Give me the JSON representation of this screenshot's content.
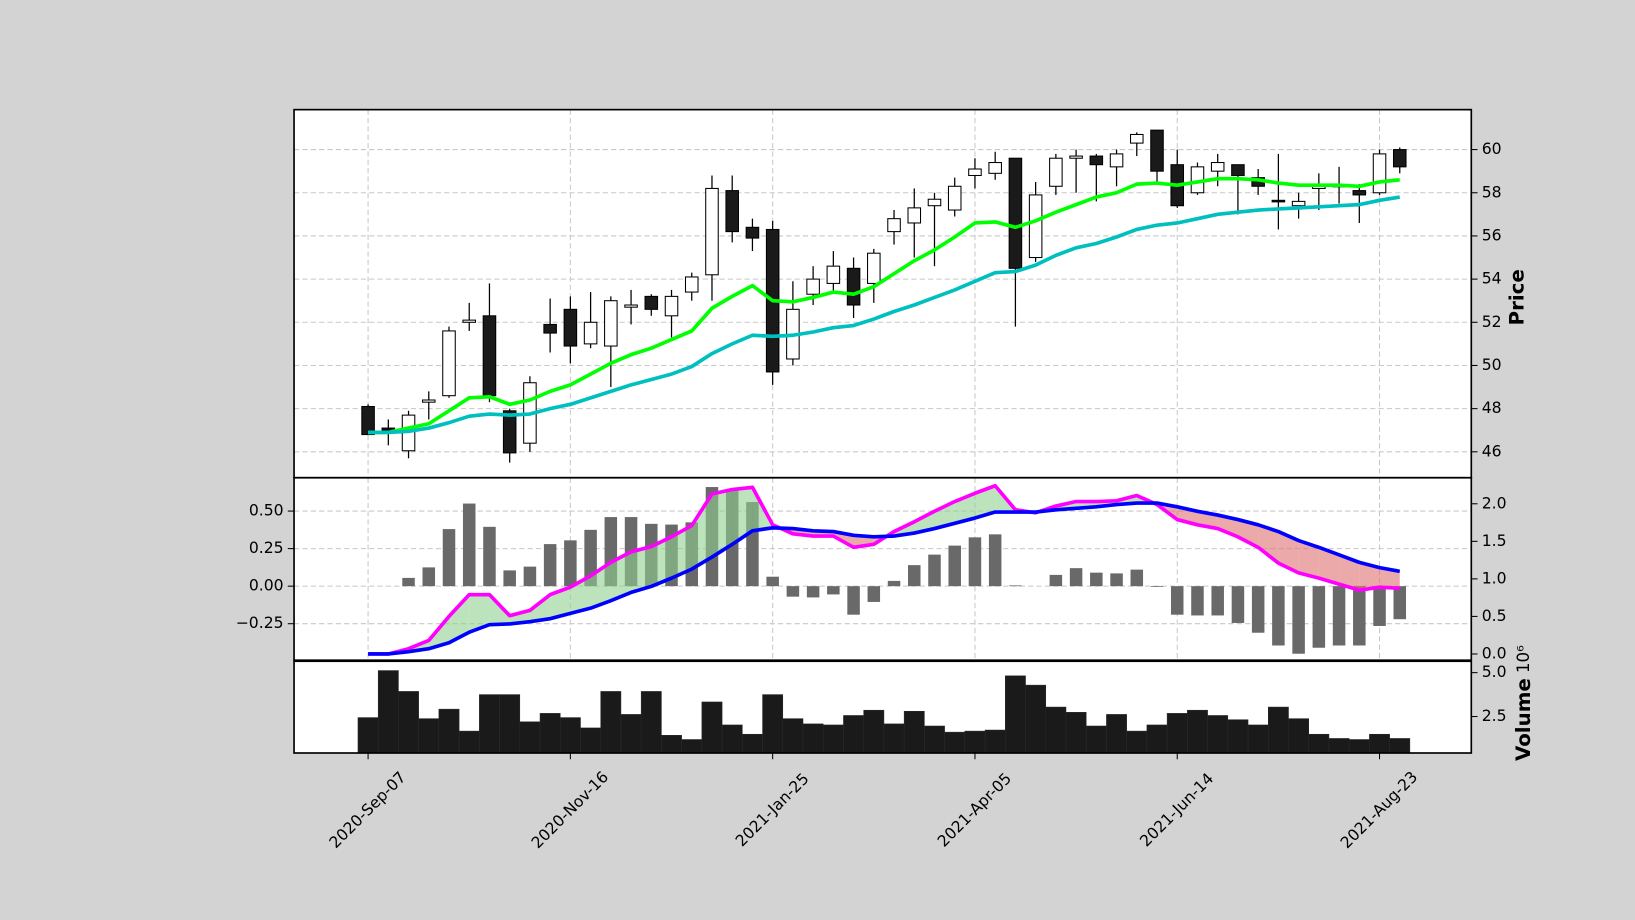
{
  "chart_data": [
    {
      "type": "candlestick",
      "categories": [
        "2020-Sep-07",
        null,
        null,
        null,
        null,
        null,
        null,
        null,
        null,
        null,
        "2020-Nov-16",
        null,
        null,
        null,
        null,
        null,
        null,
        null,
        null,
        null,
        "2021-Jan-25",
        null,
        null,
        null,
        null,
        null,
        null,
        null,
        null,
        null,
        "2021-Apr-05",
        null,
        null,
        null,
        null,
        null,
        null,
        null,
        null,
        null,
        "2021-Jun-14",
        null,
        null,
        null,
        null,
        null,
        null,
        null,
        null,
        null,
        "2021-Aug-23",
        null
      ],
      "open": [
        48.1,
        47.1,
        46.05,
        48.3,
        48.6,
        52.0,
        52.3,
        47.9,
        46.4,
        51.9,
        52.6,
        51.0,
        50.9,
        52.7,
        53.2,
        52.3,
        53.4,
        54.2,
        58.1,
        56.4,
        56.3,
        50.3,
        53.3,
        53.8,
        54.5,
        53.8,
        56.2,
        56.6,
        57.4,
        57.2,
        58.8,
        58.9,
        59.6,
        55.0,
        58.3,
        59.6,
        59.7,
        59.2,
        60.3,
        60.9,
        59.3,
        58.0,
        59.0,
        59.3,
        58.7,
        57.65,
        57.4,
        58.2,
        58.3,
        58.1,
        58.0,
        60.0
      ],
      "high": [
        48.2,
        47.5,
        47.9,
        48.8,
        51.8,
        52.9,
        53.8,
        48.0,
        49.5,
        53.1,
        53.2,
        53.4,
        53.2,
        53.5,
        53.3,
        53.5,
        54.3,
        58.8,
        58.8,
        56.8,
        56.7,
        53.9,
        54.6,
        55.3,
        55.0,
        55.4,
        57.2,
        58.2,
        58.0,
        58.7,
        59.6,
        59.9,
        59.6,
        58.5,
        59.8,
        60.0,
        59.8,
        60.0,
        60.8,
        60.9,
        60.0,
        59.4,
        59.8,
        59.3,
        59.1,
        59.8,
        58.0,
        58.9,
        59.2,
        58.4,
        60.0,
        60.1
      ],
      "low": [
        46.8,
        46.3,
        45.7,
        47.5,
        48.5,
        51.6,
        48.3,
        45.5,
        46.0,
        50.6,
        50.1,
        50.8,
        49.0,
        51.9,
        52.3,
        51.3,
        53.0,
        53.0,
        55.7,
        55.3,
        49.1,
        50.0,
        52.8,
        53.4,
        52.2,
        52.9,
        55.6,
        55.0,
        54.6,
        56.9,
        58.2,
        58.6,
        51.8,
        54.8,
        57.9,
        58.0,
        57.6,
        58.3,
        59.7,
        58.4,
        57.3,
        57.9,
        58.3,
        57.0,
        57.9,
        56.3,
        56.8,
        57.2,
        57.5,
        56.6,
        57.9,
        58.9
      ],
      "close": [
        46.8,
        47.0,
        47.7,
        48.4,
        51.6,
        52.1,
        48.6,
        45.95,
        49.2,
        51.5,
        50.9,
        52.0,
        53.0,
        52.8,
        52.6,
        53.2,
        54.1,
        58.2,
        56.2,
        55.9,
        49.7,
        52.6,
        54.0,
        54.6,
        52.8,
        55.2,
        56.8,
        57.3,
        57.7,
        58.3,
        59.1,
        59.4,
        54.5,
        57.9,
        59.6,
        59.7,
        59.3,
        59.8,
        60.7,
        59.0,
        57.4,
        59.2,
        59.4,
        58.8,
        58.3,
        57.6,
        57.6,
        58.4,
        58.35,
        57.9,
        59.8,
        59.2
      ],
      "up_color": "#ffffff",
      "down_color": "#1a1a1a",
      "series": [
        {
          "color": "#00ff00",
          "values": [
            46.9,
            46.9,
            47.1,
            47.3,
            47.9,
            48.5,
            48.55,
            48.2,
            48.4,
            48.8,
            49.1,
            49.6,
            50.1,
            50.5,
            50.8,
            51.2,
            51.6,
            52.65,
            53.2,
            53.7,
            53.0,
            52.95,
            53.15,
            53.4,
            53.3,
            53.65,
            54.25,
            54.85,
            55.35,
            55.95,
            56.6,
            56.65,
            56.4,
            56.7,
            57.1,
            57.45,
            57.8,
            58.0,
            58.4,
            58.45,
            58.35,
            58.5,
            58.65,
            58.65,
            58.6,
            58.45,
            58.35,
            58.35,
            58.35,
            58.3,
            58.5,
            58.6
          ]
        },
        {
          "color": "#00bfbf",
          "values": [
            46.9,
            46.9,
            46.95,
            47.1,
            47.35,
            47.65,
            47.75,
            47.7,
            47.75,
            48.0,
            48.2,
            48.5,
            48.8,
            49.1,
            49.35,
            49.6,
            49.95,
            50.55,
            51.0,
            51.4,
            51.35,
            51.4,
            51.55,
            51.75,
            51.85,
            52.15,
            52.5,
            52.8,
            53.15,
            53.5,
            53.9,
            54.3,
            54.35,
            54.65,
            55.1,
            55.45,
            55.65,
            55.95,
            56.3,
            56.5,
            56.6,
            56.8,
            57.0,
            57.1,
            57.2,
            57.25,
            57.3,
            57.35,
            57.4,
            57.45,
            57.65,
            57.8
          ]
        }
      ],
      "ylabel": "Price",
      "ylim": [
        44.8,
        61.85
      ],
      "yticks": [
        46,
        48,
        50,
        52,
        54,
        56,
        58,
        60
      ],
      "grid": true
    },
    {
      "type": "macd",
      "histogram": {
        "color": "#696969",
        "values": [
          0,
          0,
          0.055,
          0.125,
          0.38,
          0.55,
          0.395,
          0.105,
          0.13,
          0.28,
          0.305,
          0.375,
          0.46,
          0.46,
          0.415,
          0.41,
          0.425,
          0.66,
          0.645,
          0.56,
          0.063,
          -0.07,
          -0.075,
          -0.055,
          -0.19,
          -0.105,
          0.035,
          0.14,
          0.21,
          0.27,
          0.325,
          0.345,
          0.005,
          0,
          0.075,
          0.12,
          0.09,
          0.085,
          0.11,
          -0.005,
          -0.19,
          -0.195,
          -0.195,
          -0.245,
          -0.31,
          -0.395,
          -0.45,
          -0.41,
          -0.395,
          -0.395,
          -0.265,
          -0.22
        ]
      },
      "series": [
        {
          "color": "#ff00ff",
          "axis": "y2",
          "values": [
            0,
            0,
            0.07,
            0.18,
            0.5,
            0.79,
            0.79,
            0.51,
            0.58,
            0.79,
            0.89,
            1.04,
            1.22,
            1.36,
            1.43,
            1.56,
            1.71,
            2.13,
            2.19,
            2.22,
            1.72,
            1.6,
            1.57,
            1.57,
            1.42,
            1.46,
            1.63,
            1.76,
            1.9,
            2.03,
            2.14,
            2.24,
            1.92,
            1.88,
            1.97,
            2.03,
            2.03,
            2.04,
            2.11,
            1.99,
            1.79,
            1.72,
            1.67,
            1.56,
            1.42,
            1.21,
            1.08,
            1.01,
            0.93,
            0.85,
            0.89,
            0.875
          ]
        },
        {
          "color": "#0000ff",
          "axis": "y2",
          "values": [
            0,
            0,
            0.03,
            0.07,
            0.15,
            0.29,
            0.39,
            0.4,
            0.43,
            0.47,
            0.54,
            0.61,
            0.71,
            0.82,
            0.9,
            1.01,
            1.13,
            1.29,
            1.46,
            1.64,
            1.68,
            1.67,
            1.64,
            1.63,
            1.58,
            1.56,
            1.57,
            1.61,
            1.67,
            1.74,
            1.81,
            1.89,
            1.89,
            1.89,
            1.92,
            1.94,
            1.96,
            1.99,
            2.01,
            2.01,
            1.96,
            1.9,
            1.85,
            1.79,
            1.72,
            1.63,
            1.51,
            1.42,
            1.32,
            1.22,
            1.15,
            1.1
          ]
        }
      ],
      "fill_above_color": "#90d090",
      "fill_below_color": "#e07070",
      "ylim": [
        -0.493,
        0.722
      ],
      "yticks": [
        {
          "value": -0.25,
          "label": "−0.25"
        },
        {
          "value": 0,
          "label": "0.00"
        },
        0.25,
        {
          "value": 0.5,
          "label": "0.50"
        }
      ],
      "y2lim": [
        -0.083,
        2.347
      ],
      "y2ticks": [
        {
          "value": 0,
          "label": "0.0"
        },
        0.5,
        {
          "value": 1,
          "label": "1.0"
        },
        1.5,
        {
          "value": 2,
          "label": "2.0"
        }
      ],
      "grid": true
    },
    {
      "type": "bar",
      "color": "#1a1a1a",
      "values": [
        2.44,
        5.12,
        3.93,
        2.38,
        2.92,
        1.67,
        3.75,
        3.75,
        2.2,
        2.68,
        2.44,
        1.85,
        3.93,
        2.62,
        3.93,
        1.43,
        1.19,
        3.33,
        2.02,
        1.49,
        3.75,
        2.38,
        2.08,
        2.02,
        2.56,
        2.86,
        2.08,
        2.8,
        1.96,
        1.61,
        1.67,
        1.73,
        4.82,
        4.29,
        3.04,
        2.74,
        1.96,
        2.62,
        1.67,
        2.02,
        2.68,
        2.86,
        2.56,
        2.32,
        2.02,
        3.04,
        2.38,
        1.49,
        1.25,
        1.19,
        1.49,
        1.25
      ],
      "ylabel": "Volume",
      "offset_label": "10⁶",
      "ylim": [
        0.42,
        5.65
      ],
      "yticks": [
        2.5,
        {
          "value": 5,
          "label": "5.0"
        }
      ]
    }
  ]
}
